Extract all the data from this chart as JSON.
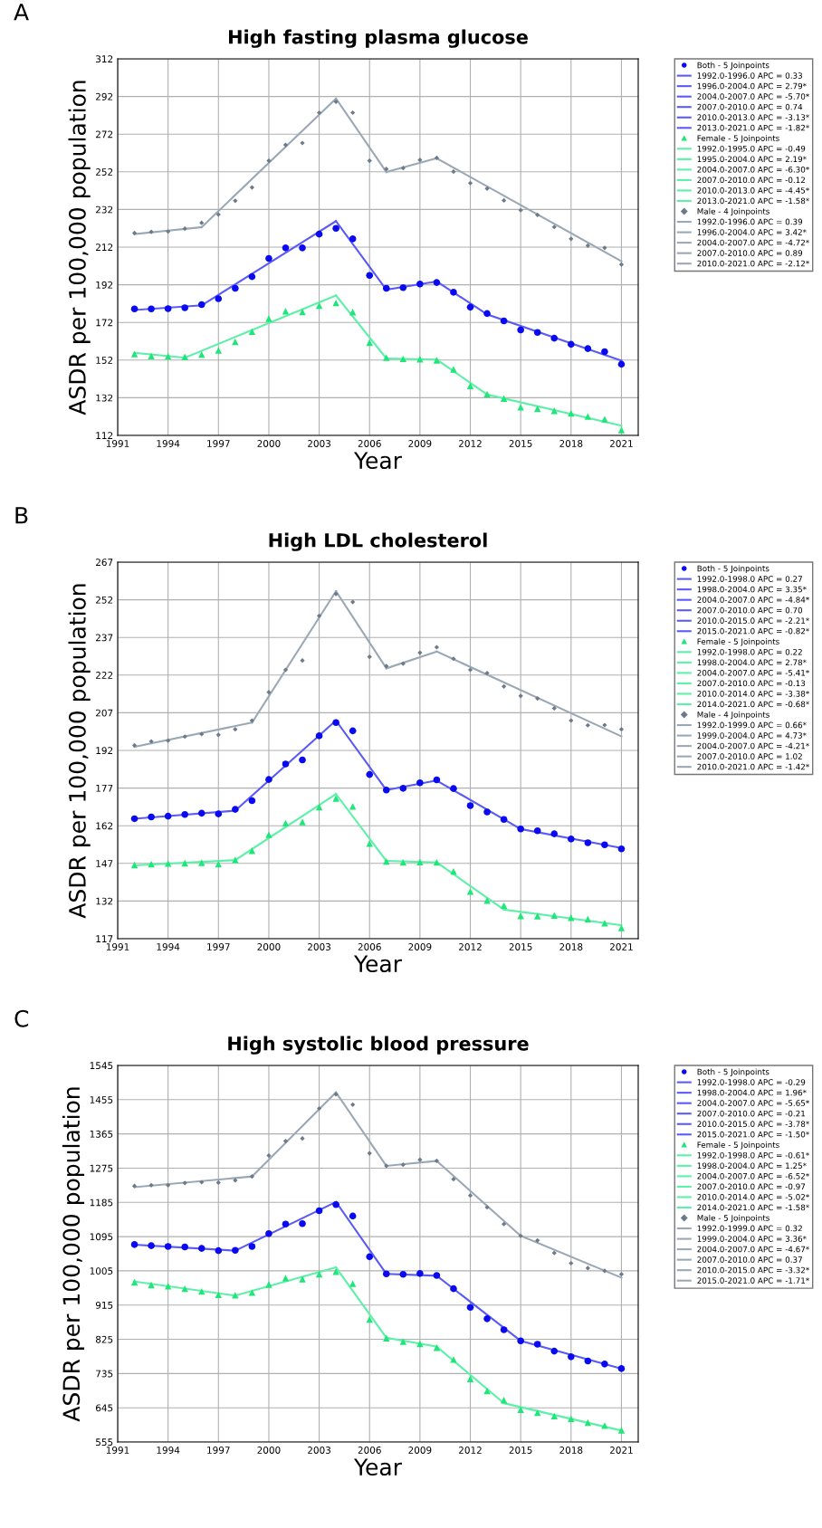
{
  "chart_data": [
    {
      "type": "scatter",
      "title": "High fasting plasma glucose",
      "xlabel": "Year",
      "ylabel": "ASDR per 100,000 population",
      "annotations": [
        "A"
      ],
      "xlim": [
        1991,
        2022
      ],
      "xticks": [
        1991,
        1994,
        1997,
        2000,
        2003,
        2006,
        2009,
        2012,
        2015,
        2018,
        2021
      ],
      "ylim": [
        112,
        312
      ],
      "yticks": [
        112,
        132,
        152,
        172,
        192,
        212,
        232,
        252,
        272,
        292,
        312
      ],
      "grid": true,
      "legend": "right",
      "x": [
        1992,
        1993,
        1994,
        1995,
        1996,
        1997,
        1998,
        1999,
        2000,
        2001,
        2002,
        2003,
        2004,
        2005,
        2006,
        2007,
        2008,
        2009,
        2010,
        2011,
        2012,
        2013,
        2014,
        2015,
        2016,
        2017,
        2018,
        2019,
        2020,
        2021
      ],
      "series": [
        {
          "name": "Both - 5 Joinpoints",
          "marker": "circle",
          "color": "#0a0af0",
          "values": [
            179.2,
            179.2,
            179.3,
            179.8,
            181.5,
            184.6,
            190.1,
            196.3,
            206.0,
            211.6,
            211.6,
            218.9,
            222.0,
            216.4,
            197.0,
            190.1,
            190.5,
            192.4,
            193.2,
            188.0,
            180.1,
            176.7,
            172.8,
            168.0,
            166.7,
            163.6,
            160.4,
            158.1,
            156.5,
            149.8
          ]
        },
        {
          "name": "1992.0-1996.0 APC = 0.33",
          "type": "line",
          "color": "#5a5af5",
          "x": [
            1992,
            1996
          ],
          "values": [
            178.6,
            181.1
          ]
        },
        {
          "name": "1996.0-2004.0 APC = 2.79*",
          "type": "line",
          "color": "#5a5af5",
          "x": [
            1996,
            2004
          ],
          "values": [
            181.1,
            225.8
          ]
        },
        {
          "name": "2004.0-2007.0 APC = -5.70*",
          "type": "line",
          "color": "#5a5af5",
          "x": [
            2004,
            2007
          ],
          "values": [
            225.8,
            189.4
          ]
        },
        {
          "name": "2007.0-2010.0 APC = 0.74",
          "type": "line",
          "color": "#5a5af5",
          "x": [
            2007,
            2010
          ],
          "values": [
            189.4,
            193.8
          ]
        },
        {
          "name": "2010.0-2013.0 APC = -3.13*",
          "type": "line",
          "color": "#5a5af5",
          "x": [
            2010,
            2013
          ],
          "values": [
            193.8,
            176.3
          ]
        },
        {
          "name": "2013.0-2021.0 APC = -1.82*",
          "type": "line",
          "color": "#5a5af5",
          "x": [
            2013,
            2021
          ],
          "values": [
            176.3,
            151.7
          ]
        },
        {
          "name": "Female - 5 Joinpoints",
          "marker": "triangle",
          "color": "#1ee678",
          "values": [
            155.2,
            154.2,
            154.0,
            153.7,
            155.0,
            157.1,
            161.7,
            167.1,
            174.0,
            178.0,
            177.6,
            180.9,
            182.4,
            177.5,
            161.3,
            153.3,
            152.7,
            152.5,
            151.9,
            147.1,
            138.3,
            133.9,
            131.6,
            127.0,
            126.2,
            125.1,
            123.7,
            122.0,
            120.6,
            114.9
          ]
        },
        {
          "name": "1992.0-1995.0 APC = -0.49",
          "type": "line",
          "color": "#5ef0a8",
          "x": [
            1992,
            1995
          ],
          "values": [
            155.8,
            153.3
          ]
        },
        {
          "name": "1995.0-2004.0 APC = 2.19*",
          "type": "line",
          "color": "#5ef0a8",
          "x": [
            1995,
            2004
          ],
          "values": [
            153.3,
            186.3
          ]
        },
        {
          "name": "2004.0-2007.0 APC = -6.30*",
          "type": "line",
          "color": "#5ef0a8",
          "x": [
            2004,
            2007
          ],
          "values": [
            186.3,
            152.9
          ]
        },
        {
          "name": "2007.0-2010.0 APC = -0.12",
          "type": "line",
          "color": "#5ef0a8",
          "x": [
            2007,
            2010
          ],
          "values": [
            152.9,
            152.3
          ]
        },
        {
          "name": "2010.0-2013.0 APC = -4.45*",
          "type": "line",
          "color": "#5ef0a8",
          "x": [
            2010,
            2013
          ],
          "values": [
            152.3,
            133.7
          ]
        },
        {
          "name": "2013.0-2021.0 APC = -1.58*",
          "type": "line",
          "color": "#5ef0a8",
          "x": [
            2013,
            2021
          ],
          "values": [
            133.7,
            117.2
          ]
        },
        {
          "name": "Male - 4 Joinpoints",
          "marker": "diamond",
          "color": "#6c7a89",
          "values": [
            219.5,
            220.1,
            220.3,
            221.8,
            224.9,
            229.3,
            236.6,
            243.7,
            257.9,
            266.3,
            267.3,
            283.4,
            289.2,
            283.4,
            257.9,
            253.5,
            254.0,
            258.3,
            259.4,
            252.1,
            246.0,
            243.1,
            236.8,
            231.6,
            229.1,
            222.7,
            216.4,
            212.8,
            211.6,
            202.8
          ]
        },
        {
          "name": "1992.0-1996.0 APC = 0.39",
          "type": "line",
          "color": "#9aa8b6",
          "x": [
            1992,
            1996
          ],
          "values": [
            218.9,
            222.6
          ]
        },
        {
          "name": "1996.0-2004.0 APC = 3.42*",
          "type": "line",
          "color": "#9aa8b6",
          "x": [
            1996,
            2004
          ],
          "values": [
            222.6,
            290.9
          ]
        },
        {
          "name": "2004.0-2007.0 APC = -4.72*",
          "type": "line",
          "color": "#9aa8b6",
          "x": [
            2004,
            2007
          ],
          "values": [
            290.9,
            251.9
          ]
        },
        {
          "name": "2007.0-2010.0 APC = 0.89",
          "type": "line",
          "color": "#9aa8b6",
          "x": [
            2007,
            2010
          ],
          "values": [
            251.9,
            259.2
          ]
        },
        {
          "name": "2010.0-2021.0 APC = -2.12*",
          "type": "line",
          "color": "#9aa8b6",
          "x": [
            2010,
            2021
          ],
          "values": [
            259.2,
            204.5
          ]
        }
      ]
    },
    {
      "type": "scatter",
      "title": "High LDL cholesterol",
      "xlabel": "Year",
      "ylabel": "ASDR per 100,000 population",
      "annotations": [
        "B"
      ],
      "xlim": [
        1991,
        2022
      ],
      "xticks": [
        1991,
        1994,
        1997,
        2000,
        2003,
        2006,
        2009,
        2012,
        2015,
        2018,
        2021
      ],
      "ylim": [
        117,
        267
      ],
      "yticks": [
        117,
        132,
        147,
        162,
        177,
        192,
        207,
        222,
        237,
        252,
        267
      ],
      "grid": true,
      "legend": "right",
      "x": [
        1992,
        1993,
        1994,
        1995,
        1996,
        1997,
        1998,
        1999,
        2000,
        2001,
        2002,
        2003,
        2004,
        2005,
        2006,
        2007,
        2008,
        2009,
        2010,
        2011,
        2012,
        2013,
        2014,
        2015,
        2016,
        2017,
        2018,
        2019,
        2020,
        2021
      ],
      "series": [
        {
          "name": "Both - 5 Joinpoints",
          "marker": "circle",
          "color": "#0a0af0",
          "values": [
            164.8,
            165.5,
            165.8,
            166.5,
            167.0,
            166.7,
            168.5,
            172.0,
            180.4,
            186.6,
            188.2,
            197.8,
            203.1,
            199.8,
            182.4,
            176.2,
            176.9,
            179.1,
            180.3,
            176.8,
            170.0,
            167.5,
            164.5,
            160.7,
            160.0,
            158.8,
            156.7,
            155.2,
            154.4,
            152.8
          ]
        },
        {
          "name": "1992.0-1998.0 APC = 0.27",
          "type": "line",
          "color": "#5a5af5",
          "x": [
            1992,
            1998
          ],
          "values": [
            164.8,
            168.0
          ]
        },
        {
          "name": "1998.0-2004.0 APC = 3.35*",
          "type": "line",
          "color": "#5a5af5",
          "x": [
            1998,
            2004
          ],
          "values": [
            168.0,
            203.9
          ]
        },
        {
          "name": "2004.0-2007.0 APC = -4.84*",
          "type": "line",
          "color": "#5a5af5",
          "x": [
            2004,
            2007
          ],
          "values": [
            203.9,
            176.2
          ]
        },
        {
          "name": "2007.0-2010.0 APC = 0.70",
          "type": "line",
          "color": "#5a5af5",
          "x": [
            2007,
            2010
          ],
          "values": [
            176.2,
            180.0
          ]
        },
        {
          "name": "2010.0-2015.0 APC = -2.21*",
          "type": "line",
          "color": "#5a5af5",
          "x": [
            2010,
            2015
          ],
          "values": [
            180.0,
            160.7
          ]
        },
        {
          "name": "2015.0-2021.0 APC = -0.82*",
          "type": "line",
          "color": "#5a5af5",
          "x": [
            2015,
            2021
          ],
          "values": [
            160.7,
            153.1
          ]
        },
        {
          "name": "Female - 5 Joinpoints",
          "marker": "triangle",
          "color": "#1ee678",
          "values": [
            146.4,
            146.7,
            147.0,
            147.1,
            147.3,
            146.7,
            148.4,
            152.0,
            158.4,
            163.0,
            163.5,
            169.4,
            172.9,
            169.7,
            154.9,
            147.8,
            147.4,
            147.5,
            147.4,
            143.8,
            135.8,
            132.2,
            130.2,
            126.1,
            126.0,
            126.3,
            125.4,
            124.8,
            123.2,
            121.3
          ]
        },
        {
          "name": "1992.0-1998.0 APC = 0.22",
          "type": "line",
          "color": "#5ef0a8",
          "x": [
            1992,
            1998
          ],
          "values": [
            146.2,
            148.3
          ]
        },
        {
          "name": "1998.0-2004.0 APC = 2.78*",
          "type": "line",
          "color": "#5ef0a8",
          "x": [
            1998,
            2004
          ],
          "values": [
            148.3,
            174.6
          ]
        },
        {
          "name": "2004.0-2007.0 APC = -5.41*",
          "type": "line",
          "color": "#5ef0a8",
          "x": [
            2004,
            2007
          ],
          "values": [
            174.6,
            148.0
          ]
        },
        {
          "name": "2007.0-2010.0 APC = -0.13",
          "type": "line",
          "color": "#5ef0a8",
          "x": [
            2007,
            2010
          ],
          "values": [
            148.0,
            147.4
          ]
        },
        {
          "name": "2010.0-2014.0 APC = -3.38*",
          "type": "line",
          "color": "#5ef0a8",
          "x": [
            2010,
            2014
          ],
          "values": [
            147.4,
            128.6
          ]
        },
        {
          "name": "2014.0-2021.0 APC = -0.68*",
          "type": "line",
          "color": "#5ef0a8",
          "x": [
            2014,
            2021
          ],
          "values": [
            128.6,
            122.4
          ]
        },
        {
          "name": "Male - 4 Joinpoints",
          "marker": "diamond",
          "color": "#6c7a89",
          "values": [
            194.0,
            195.6,
            195.9,
            197.5,
            198.5,
            198.2,
            200.4,
            203.9,
            215.2,
            224.1,
            227.8,
            245.6,
            254.3,
            251.1,
            229.3,
            225.6,
            226.6,
            230.9,
            233.1,
            228.5,
            224.1,
            222.8,
            217.5,
            213.7,
            212.7,
            208.8,
            203.9,
            202.0,
            202.1,
            200.4
          ]
        },
        {
          "name": "1992.0-1999.0 APC = 0.66*",
          "type": "line",
          "color": "#9aa8b6",
          "x": [
            1992,
            1999
          ],
          "values": [
            193.4,
            203.1
          ]
        },
        {
          "name": "1999.0-2004.0 APC = 4.73*",
          "type": "line",
          "color": "#9aa8b6",
          "x": [
            1999,
            2004
          ],
          "values": [
            203.1,
            255.4
          ]
        },
        {
          "name": "2004.0-2007.0 APC = -4.21*",
          "type": "line",
          "color": "#9aa8b6",
          "x": [
            2004,
            2007
          ],
          "values": [
            255.4,
            224.7
          ]
        },
        {
          "name": "2007.0-2010.0 APC = 1.02",
          "type": "line",
          "color": "#9aa8b6",
          "x": [
            2007,
            2010
          ],
          "values": [
            224.7,
            231.4
          ]
        },
        {
          "name": "2010.0-2021.0 APC = -1.42*",
          "type": "line",
          "color": "#9aa8b6",
          "x": [
            2010,
            2021
          ],
          "values": [
            231.4,
            197.6
          ]
        }
      ]
    },
    {
      "type": "scatter",
      "title": "High systolic blood pressure",
      "xlabel": "Year",
      "ylabel": "ASDR per 100,000 population",
      "annotations": [
        "C"
      ],
      "xlim": [
        1991,
        2022
      ],
      "xticks": [
        1991,
        1994,
        1997,
        2000,
        2003,
        2006,
        2009,
        2012,
        2015,
        2018,
        2021
      ],
      "ylim": [
        555,
        1545
      ],
      "yticks": [
        555,
        645,
        735,
        825,
        915,
        1005,
        1095,
        1185,
        1275,
        1365,
        1455,
        1545
      ],
      "grid": true,
      "legend": "right",
      "x": [
        1992,
        1993,
        1994,
        1995,
        1996,
        1997,
        1998,
        1999,
        2000,
        2001,
        2002,
        2003,
        2004,
        2005,
        2006,
        2007,
        2008,
        2009,
        2010,
        2011,
        2012,
        2013,
        2014,
        2015,
        2016,
        2017,
        2018,
        2019,
        2020,
        2021
      ],
      "series": [
        {
          "name": "Both - 5 Joinpoints",
          "marker": "circle",
          "color": "#0a0af0",
          "values": [
            1074,
            1071,
            1069,
            1068,
            1064,
            1058,
            1059,
            1069,
            1103,
            1128,
            1129,
            1163,
            1179,
            1149,
            1042,
            997,
            996,
            998,
            993,
            958,
            909,
            879,
            850,
            821,
            812,
            794,
            779,
            768,
            760,
            748
          ]
        },
        {
          "name": "1992.0-1998.0 APC = -0.29",
          "type": "line",
          "color": "#5a5af5",
          "x": [
            1992,
            1998
          ],
          "values": [
            1074,
            1058
          ]
        },
        {
          "name": "1998.0-2004.0 APC = 1.96*",
          "type": "line",
          "color": "#5a5af5",
          "x": [
            1998,
            2004
          ],
          "values": [
            1058,
            1186
          ]
        },
        {
          "name": "2004.0-2007.0 APC = -5.65*",
          "type": "line",
          "color": "#5a5af5",
          "x": [
            2004,
            2007
          ],
          "values": [
            1186,
            997
          ]
        },
        {
          "name": "2007.0-2010.0 APC = -0.21",
          "type": "line",
          "color": "#5a5af5",
          "x": [
            2007,
            2010
          ],
          "values": [
            997,
            992
          ]
        },
        {
          "name": "2010.0-2015.0 APC = -3.78*",
          "type": "line",
          "color": "#5a5af5",
          "x": [
            2010,
            2015
          ],
          "values": [
            992,
            821
          ]
        },
        {
          "name": "2015.0-2021.0 APC = -1.50*",
          "type": "line",
          "color": "#5a5af5",
          "x": [
            2015,
            2021
          ],
          "values": [
            821,
            748
          ]
        },
        {
          "name": "Female - 5 Joinpoints",
          "marker": "triangle",
          "color": "#1ee678",
          "values": [
            975,
            968,
            965,
            958,
            951,
            942,
            941,
            948,
            969,
            986,
            983,
            996,
            1003,
            971,
            877,
            828,
            819,
            813,
            803,
            772,
            721,
            689,
            665,
            640,
            632,
            623,
            616,
            606,
            598,
            586
          ]
        },
        {
          "name": "1992.0-1998.0 APC = -0.61*",
          "type": "line",
          "color": "#5ef0a8",
          "x": [
            1992,
            1998
          ],
          "values": [
            977,
            940
          ]
        },
        {
          "name": "1998.0-2004.0 APC = 1.25*",
          "type": "line",
          "color": "#5ef0a8",
          "x": [
            1998,
            2004
          ],
          "values": [
            940,
            1014
          ]
        },
        {
          "name": "2004.0-2007.0 APC = -6.52*",
          "type": "line",
          "color": "#5ef0a8",
          "x": [
            2004,
            2007
          ],
          "values": [
            1014,
            829
          ]
        },
        {
          "name": "2007.0-2010.0 APC = -0.97",
          "type": "line",
          "color": "#5ef0a8",
          "x": [
            2007,
            2010
          ],
          "values": [
            829,
            806
          ]
        },
        {
          "name": "2010.0-2014.0 APC = -5.02*",
          "type": "line",
          "color": "#5ef0a8",
          "x": [
            2010,
            2014
          ],
          "values": [
            806,
            657
          ]
        },
        {
          "name": "2014.0-2021.0 APC = -1.58*",
          "type": "line",
          "color": "#5ef0a8",
          "x": [
            2014,
            2021
          ],
          "values": [
            657,
            585
          ]
        },
        {
          "name": "Male - 5 Joinpoints",
          "marker": "diamond",
          "color": "#6c7a89",
          "values": [
            1228,
            1230,
            1230,
            1236,
            1238,
            1237,
            1243,
            1253,
            1308,
            1346,
            1353,
            1432,
            1469,
            1442,
            1314,
            1281,
            1284,
            1297,
            1294,
            1246,
            1203,
            1172,
            1128,
            1097,
            1085,
            1052,
            1025,
            1012,
            1005,
            996
          ]
        },
        {
          "name": "1992.0-1999.0 APC = 0.32",
          "type": "line",
          "color": "#9aa8b6",
          "x": [
            1992,
            1999
          ],
          "values": [
            1225,
            1253
          ]
        },
        {
          "name": "1999.0-2004.0 APC = 3.36*",
          "type": "line",
          "color": "#9aa8b6",
          "x": [
            1999,
            2004
          ],
          "values": [
            1253,
            1474
          ]
        },
        {
          "name": "2004.0-2007.0 APC = -4.67*",
          "type": "line",
          "color": "#9aa8b6",
          "x": [
            2004,
            2007
          ],
          "values": [
            1474,
            1281
          ]
        },
        {
          "name": "2007.0-2010.0 APC = 0.37",
          "type": "line",
          "color": "#9aa8b6",
          "x": [
            2007,
            2010
          ],
          "values": [
            1281,
            1294
          ]
        },
        {
          "name": "2010.0-2015.0 APC = -3.32*",
          "type": "line",
          "color": "#9aa8b6",
          "x": [
            2010,
            2015
          ],
          "values": [
            1294,
            1097
          ]
        },
        {
          "name": "2015.0-2021.0 APC = -1.71*",
          "type": "line",
          "color": "#9aa8b6",
          "x": [
            2015,
            2021
          ],
          "values": [
            1097,
            987
          ]
        }
      ]
    }
  ]
}
